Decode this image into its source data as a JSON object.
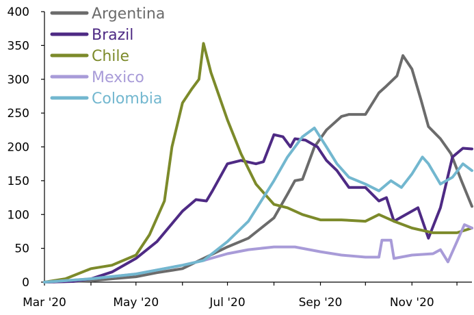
{
  "chart_data": {
    "type": "line",
    "x_axis": {
      "ticks": [
        "Mar '20",
        "May '20",
        "Jul '20",
        "Sep '20",
        "Nov '20"
      ],
      "range": [
        "2020-03-01",
        "2020-12-11"
      ]
    },
    "y_axis": {
      "ticks": [
        0,
        50,
        100,
        150,
        200,
        250,
        300,
        350,
        400
      ],
      "range": [
        0,
        400
      ]
    },
    "grid": false,
    "legend_position": "top-left",
    "series": [
      {
        "name": "Argentina",
        "color": "#6b6b6b",
        "points": [
          [
            "2020-03-01",
            0
          ],
          [
            "2020-04-01",
            2
          ],
          [
            "2020-04-15",
            5
          ],
          [
            "2020-05-01",
            8
          ],
          [
            "2020-05-15",
            14
          ],
          [
            "2020-06-01",
            20
          ],
          [
            "2020-06-15",
            35
          ],
          [
            "2020-07-01",
            52
          ],
          [
            "2020-07-15",
            65
          ],
          [
            "2020-08-01",
            95
          ],
          [
            "2020-08-10",
            130
          ],
          [
            "2020-08-15",
            150
          ],
          [
            "2020-08-20",
            152
          ],
          [
            "2020-08-28",
            200
          ],
          [
            "2020-09-05",
            225
          ],
          [
            "2020-09-15",
            245
          ],
          [
            "2020-09-20",
            248
          ],
          [
            "2020-10-01",
            248
          ],
          [
            "2020-10-10",
            280
          ],
          [
            "2020-10-15",
            290
          ],
          [
            "2020-10-22",
            305
          ],
          [
            "2020-10-26",
            335
          ],
          [
            "2020-11-01",
            315
          ],
          [
            "2020-11-07",
            270
          ],
          [
            "2020-11-12",
            230
          ],
          [
            "2020-11-20",
            212
          ],
          [
            "2020-11-27",
            190
          ],
          [
            "2020-12-04",
            150
          ],
          [
            "2020-12-11",
            112
          ]
        ]
      },
      {
        "name": "Brazil",
        "color": "#4e2a84",
        "points": [
          [
            "2020-03-01",
            0
          ],
          [
            "2020-03-20",
            1
          ],
          [
            "2020-04-01",
            5
          ],
          [
            "2020-04-15",
            15
          ],
          [
            "2020-05-01",
            35
          ],
          [
            "2020-05-15",
            60
          ],
          [
            "2020-06-01",
            105
          ],
          [
            "2020-06-10",
            122
          ],
          [
            "2020-06-17",
            120
          ],
          [
            "2020-06-21",
            135
          ],
          [
            "2020-07-01",
            175
          ],
          [
            "2020-07-10",
            180
          ],
          [
            "2020-07-20",
            175
          ],
          [
            "2020-07-25",
            178
          ],
          [
            "2020-08-01",
            218
          ],
          [
            "2020-08-07",
            215
          ],
          [
            "2020-08-12",
            200
          ],
          [
            "2020-08-15",
            212
          ],
          [
            "2020-08-22",
            210
          ],
          [
            "2020-08-30",
            200
          ],
          [
            "2020-09-05",
            180
          ],
          [
            "2020-09-12",
            165
          ],
          [
            "2020-09-20",
            140
          ],
          [
            "2020-10-01",
            140
          ],
          [
            "2020-10-10",
            120
          ],
          [
            "2020-10-15",
            125
          ],
          [
            "2020-10-20",
            90
          ],
          [
            "2020-10-28",
            100
          ],
          [
            "2020-11-05",
            110
          ],
          [
            "2020-11-12",
            65
          ],
          [
            "2020-11-20",
            110
          ],
          [
            "2020-11-28",
            185
          ],
          [
            "2020-12-05",
            198
          ],
          [
            "2020-12-11",
            197
          ]
        ]
      },
      {
        "name": "Chile",
        "color": "#7c8a2a",
        "points": [
          [
            "2020-03-01",
            0
          ],
          [
            "2020-03-15",
            5
          ],
          [
            "2020-04-01",
            20
          ],
          [
            "2020-04-15",
            25
          ],
          [
            "2020-05-01",
            40
          ],
          [
            "2020-05-10",
            70
          ],
          [
            "2020-05-20",
            120
          ],
          [
            "2020-05-25",
            200
          ],
          [
            "2020-06-01",
            265
          ],
          [
            "2020-06-07",
            285
          ],
          [
            "2020-06-12",
            300
          ],
          [
            "2020-06-15",
            353
          ],
          [
            "2020-06-20",
            310
          ],
          [
            "2020-07-01",
            240
          ],
          [
            "2020-07-10",
            190
          ],
          [
            "2020-07-20",
            145
          ],
          [
            "2020-08-01",
            115
          ],
          [
            "2020-08-10",
            110
          ],
          [
            "2020-08-20",
            100
          ],
          [
            "2020-09-01",
            92
          ],
          [
            "2020-09-15",
            92
          ],
          [
            "2020-10-01",
            90
          ],
          [
            "2020-10-10",
            100
          ],
          [
            "2020-10-20",
            90
          ],
          [
            "2020-11-01",
            80
          ],
          [
            "2020-11-15",
            73
          ],
          [
            "2020-12-01",
            73
          ],
          [
            "2020-12-11",
            80
          ]
        ]
      },
      {
        "name": "Mexico",
        "color": "#a89bd8",
        "points": [
          [
            "2020-03-01",
            0
          ],
          [
            "2020-04-01",
            5
          ],
          [
            "2020-05-01",
            12
          ],
          [
            "2020-06-01",
            25
          ],
          [
            "2020-06-15",
            32
          ],
          [
            "2020-07-01",
            42
          ],
          [
            "2020-07-15",
            48
          ],
          [
            "2020-08-01",
            52
          ],
          [
            "2020-08-15",
            52
          ],
          [
            "2020-09-01",
            45
          ],
          [
            "2020-09-15",
            40
          ],
          [
            "2020-10-01",
            37
          ],
          [
            "2020-10-10",
            37
          ],
          [
            "2020-10-12",
            62
          ],
          [
            "2020-10-18",
            62
          ],
          [
            "2020-10-20",
            35
          ],
          [
            "2020-11-01",
            40
          ],
          [
            "2020-11-15",
            42
          ],
          [
            "2020-11-20",
            48
          ],
          [
            "2020-11-25",
            30
          ],
          [
            "2020-12-01",
            60
          ],
          [
            "2020-12-06",
            85
          ],
          [
            "2020-12-11",
            80
          ]
        ]
      },
      {
        "name": "Colombia",
        "color": "#72b7cf",
        "points": [
          [
            "2020-03-01",
            0
          ],
          [
            "2020-04-01",
            5
          ],
          [
            "2020-05-01",
            12
          ],
          [
            "2020-06-01",
            25
          ],
          [
            "2020-06-15",
            32
          ],
          [
            "2020-07-01",
            60
          ],
          [
            "2020-07-15",
            90
          ],
          [
            "2020-08-01",
            150
          ],
          [
            "2020-08-10",
            185
          ],
          [
            "2020-08-20",
            215
          ],
          [
            "2020-08-28",
            228
          ],
          [
            "2020-09-05",
            200
          ],
          [
            "2020-09-12",
            175
          ],
          [
            "2020-09-20",
            155
          ],
          [
            "2020-10-01",
            145
          ],
          [
            "2020-10-10",
            135
          ],
          [
            "2020-10-18",
            150
          ],
          [
            "2020-10-25",
            140
          ],
          [
            "2020-11-01",
            160
          ],
          [
            "2020-11-08",
            185
          ],
          [
            "2020-11-12",
            175
          ],
          [
            "2020-11-20",
            145
          ],
          [
            "2020-11-28",
            155
          ],
          [
            "2020-12-05",
            175
          ],
          [
            "2020-12-11",
            165
          ]
        ]
      }
    ]
  }
}
